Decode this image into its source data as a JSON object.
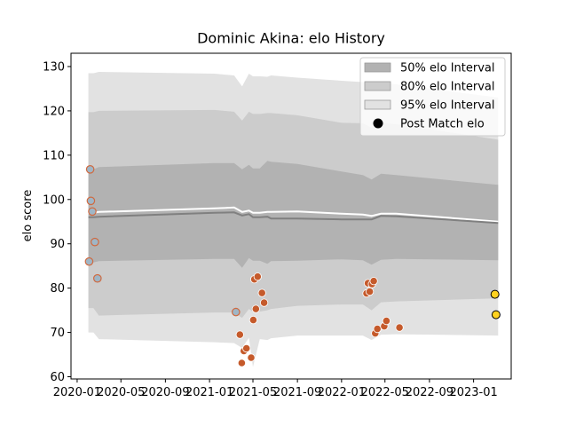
{
  "chart_data": {
    "type": "line",
    "title": "Dominic Akina: elo History",
    "xlabel": "",
    "ylabel": "elo score",
    "x_ticks": [
      "2020-01",
      "2020-05",
      "2020-09",
      "2021-01",
      "2021-05",
      "2021-09",
      "2022-01",
      "2022-05",
      "2022-09",
      "2023-01"
    ],
    "y_ticks": [
      60,
      70,
      80,
      90,
      100,
      110,
      120,
      130
    ],
    "xlim": [
      "2019-12-15",
      "2023-04-15"
    ],
    "ylim": [
      59.5,
      133
    ],
    "grid": false,
    "legend_position": "top-right",
    "legend": [
      {
        "label": "50% elo Interval",
        "swatch": "band50"
      },
      {
        "label": "80% elo Interval",
        "swatch": "band80"
      },
      {
        "label": "95% elo Interval",
        "swatch": "band95"
      },
      {
        "label": "Post Match elo",
        "swatch": "dot"
      }
    ],
    "colors": {
      "band95": "#e2e2e2",
      "band80": "#cccccc",
      "band50": "#b2b2b2",
      "mean_line": "#808080",
      "upper_line": "#ffffff",
      "match_dot": "#c55a2b",
      "early_dot": "#9fb6c6",
      "early_dot_edge": "#d06a40",
      "latest_dot": "#ffd21f"
    },
    "bands": {
      "dates": [
        "2020-02-01",
        "2020-02-15",
        "2020-03-01",
        "2021-01-15",
        "2021-03-10",
        "2021-04-01",
        "2021-04-20",
        "2021-05-01",
        "2021-05-20",
        "2021-06-10",
        "2021-06-20",
        "2021-09-01",
        "2022-01-01",
        "2022-03-01",
        "2022-03-25",
        "2022-04-20",
        "2022-06-01",
        "2023-03-10"
      ],
      "p95_hi": [
        128.5,
        128.5,
        128.8,
        128.4,
        128.0,
        125.5,
        128.4,
        127.8,
        127.8,
        127.7,
        128.0,
        127.5,
        126.8,
        126.5,
        125.8,
        126.5,
        126.0,
        123.0
      ],
      "p80_hi": [
        119.7,
        119.7,
        120.0,
        120.2,
        119.8,
        117.8,
        119.8,
        119.3,
        119.3,
        119.5,
        119.5,
        119.0,
        117.3,
        117.2,
        116.2,
        117.3,
        117.0,
        113.5
      ],
      "p50_hi": [
        106.5,
        106.8,
        107.3,
        108.2,
        108.2,
        106.8,
        107.8,
        107.0,
        107.0,
        108.7,
        108.5,
        108.0,
        106.3,
        105.5,
        104.5,
        105.8,
        105.5,
        103.3
      ],
      "upper_line": [
        97.0,
        97.0,
        97.2,
        98.0,
        98.2,
        97.2,
        97.5,
        97.0,
        97.0,
        97.2,
        97.2,
        97.3,
        96.8,
        96.6,
        96.3,
        96.8,
        96.8,
        95.0
      ],
      "mean": [
        96.0,
        96.0,
        96.1,
        97.0,
        97.1,
        96.4,
        96.7,
        96.0,
        96.0,
        96.1,
        95.7,
        95.7,
        95.5,
        95.5,
        95.5,
        96.3,
        96.2,
        94.7
      ],
      "p50_lo": [
        85.8,
        85.8,
        86.1,
        86.6,
        86.6,
        84.6,
        86.8,
        86.2,
        86.2,
        85.5,
        86.1,
        86.2,
        86.5,
        86.3,
        85.3,
        86.4,
        86.6,
        86.3
      ],
      "p80_lo": [
        75.5,
        75.5,
        73.8,
        74.5,
        74.5,
        73.3,
        75.3,
        74.7,
        74.7,
        75.0,
        75.3,
        76.0,
        76.3,
        76.3,
        75.0,
        76.8,
        77.0,
        77.7
      ],
      "p95_lo": [
        70.0,
        70.0,
        68.5,
        67.8,
        67.6,
        66.5,
        68.8,
        62.2,
        68.5,
        68.3,
        68.7,
        69.3,
        69.3,
        69.3,
        68.3,
        69.5,
        69.6,
        69.3
      ]
    },
    "match_points": [
      {
        "date": "2020-02-03",
        "elo": 86.0,
        "kind": "early"
      },
      {
        "date": "2020-02-06",
        "elo": 106.8,
        "kind": "early"
      },
      {
        "date": "2020-02-08",
        "elo": 99.7,
        "kind": "early"
      },
      {
        "date": "2020-02-12",
        "elo": 97.3,
        "kind": "early"
      },
      {
        "date": "2020-02-19",
        "elo": 90.4,
        "kind": "early"
      },
      {
        "date": "2020-02-26",
        "elo": 82.2,
        "kind": "early"
      },
      {
        "date": "2021-03-15",
        "elo": 74.6,
        "kind": "early"
      },
      {
        "date": "2021-03-26",
        "elo": 69.5,
        "kind": "match"
      },
      {
        "date": "2021-03-31",
        "elo": 63.1,
        "kind": "match"
      },
      {
        "date": "2021-04-06",
        "elo": 65.8,
        "kind": "match"
      },
      {
        "date": "2021-04-13",
        "elo": 66.4,
        "kind": "match"
      },
      {
        "date": "2021-04-26",
        "elo": 64.3,
        "kind": "match"
      },
      {
        "date": "2021-05-02",
        "elo": 72.8,
        "kind": "match"
      },
      {
        "date": "2021-05-05",
        "elo": 82.0,
        "kind": "match"
      },
      {
        "date": "2021-05-09",
        "elo": 75.3,
        "kind": "match"
      },
      {
        "date": "2021-05-14",
        "elo": 82.6,
        "kind": "match"
      },
      {
        "date": "2021-05-26",
        "elo": 78.9,
        "kind": "match"
      },
      {
        "date": "2021-06-01",
        "elo": 76.7,
        "kind": "match"
      },
      {
        "date": "2022-03-11",
        "elo": 78.8,
        "kind": "match"
      },
      {
        "date": "2022-03-15",
        "elo": 81.1,
        "kind": "match"
      },
      {
        "date": "2022-03-20",
        "elo": 79.2,
        "kind": "match"
      },
      {
        "date": "2022-03-26",
        "elo": 80.9,
        "kind": "match"
      },
      {
        "date": "2022-03-31",
        "elo": 81.6,
        "kind": "match"
      },
      {
        "date": "2022-04-04",
        "elo": 69.8,
        "kind": "match"
      },
      {
        "date": "2022-04-10",
        "elo": 70.8,
        "kind": "match"
      },
      {
        "date": "2022-04-29",
        "elo": 71.4,
        "kind": "match"
      },
      {
        "date": "2022-05-05",
        "elo": 72.6,
        "kind": "match"
      },
      {
        "date": "2022-06-10",
        "elo": 71.1,
        "kind": "match"
      },
      {
        "date": "2023-03-01",
        "elo": 78.6,
        "kind": "latest"
      },
      {
        "date": "2023-03-04",
        "elo": 74.0,
        "kind": "latest"
      }
    ]
  }
}
